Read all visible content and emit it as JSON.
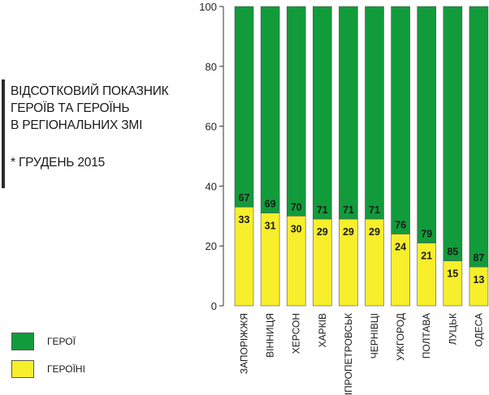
{
  "title_lines": [
    "ВІДСОТКОВИЙ ПОКАЗНИК",
    "ГЕРОЇВ ТА ГЕРОЇНЬ",
    "В РЕГІОНАЛЬНИХ ЗМІ"
  ],
  "subtitle": "* ГРУДЕНЬ 2015",
  "legend": [
    {
      "label": "ГЕРОЇ",
      "color": "#129b3b"
    },
    {
      "label": "ГЕРОЇНІ",
      "color": "#f7ee2c"
    }
  ],
  "chart_data": {
    "type": "bar",
    "stacked": true,
    "categories": [
      "ЗАПОРІЖЖЯ",
      "ВІННИЦЯ",
      "ХЕРСОН",
      "ХАРКІВ",
      "ДНІПРОПЕТРОВСЬК",
      "ЧЕРНІВЦІ",
      "УЖГОРОД",
      "ПОЛТАВА",
      "ЛУЦЬК",
      "ОДЕСА"
    ],
    "series": [
      {
        "name": "ГЕРОЇНІ",
        "color": "#f7ee2c",
        "values": [
          33,
          31,
          30,
          29,
          29,
          29,
          24,
          21,
          15,
          13
        ]
      },
      {
        "name": "ГЕРОЇ",
        "color": "#129b3b",
        "values": [
          67,
          69,
          70,
          71,
          71,
          71,
          76,
          79,
          85,
          87
        ]
      }
    ],
    "ylim": [
      0,
      100
    ],
    "yticks": [
      "0",
      "20",
      "40",
      "60",
      "80",
      "100"
    ],
    "data_labels": true,
    "legend_position": "bottom-left",
    "grid": false
  }
}
